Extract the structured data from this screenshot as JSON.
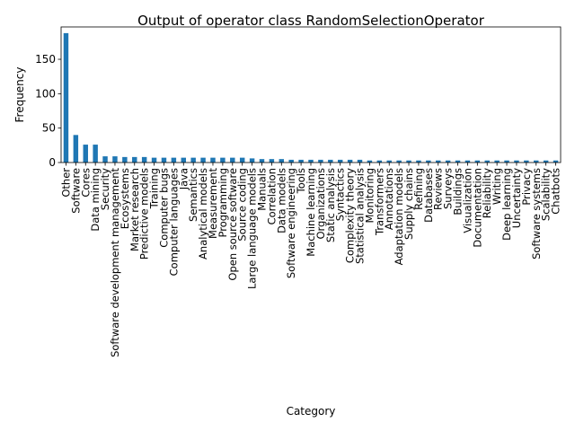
{
  "chart_data": {
    "type": "bar",
    "title": "Output of operator class RandomSelectionOperator",
    "xlabel": "Category",
    "ylabel": "Frequency",
    "ylim": [
      0,
      197
    ],
    "yticks": [
      0,
      50,
      100,
      150
    ],
    "grid": false,
    "bar_color": "#1f77b4",
    "categories": [
      "Other",
      "Software",
      "Cores",
      "Data mining",
      "Security",
      "Software development management",
      "Ecosystems",
      "Market research",
      "Predictive models",
      "Training",
      "Computer bugs",
      "Computer languages",
      "Java",
      "Semantics",
      "Analytical models",
      "Measurement",
      "Programming",
      "Open source software",
      "Source coding",
      "Large language models",
      "Manuals",
      "Correlation",
      "Data models",
      "Software engineering",
      "Tools",
      "Machine learning",
      "Organizations",
      "Static analysis",
      "Syntactics",
      "Complexity theory",
      "Statistical analysis",
      "Monitoring",
      "Transformers",
      "Annotations",
      "Adaptation models",
      "Supply chains",
      "Refining",
      "Databases",
      "Reviews",
      "Surveys",
      "Buildings",
      "Visualization",
      "Documentation",
      "Reliability",
      "Writing",
      "Deep learning",
      "Uncertainty",
      "Privacy",
      "Software systems",
      "Scalability",
      "Chatbots"
    ],
    "values": [
      188,
      40,
      26,
      26,
      9,
      9,
      8,
      8,
      8,
      7,
      7,
      7,
      7,
      7,
      7,
      7,
      7,
      7,
      7,
      6,
      5,
      5,
      5,
      4,
      4,
      4,
      4,
      4,
      4,
      4,
      4,
      3,
      3,
      3,
      3,
      3,
      3,
      3,
      3,
      3,
      3,
      3,
      3,
      3,
      3,
      3,
      3,
      3,
      3,
      3,
      3
    ]
  }
}
